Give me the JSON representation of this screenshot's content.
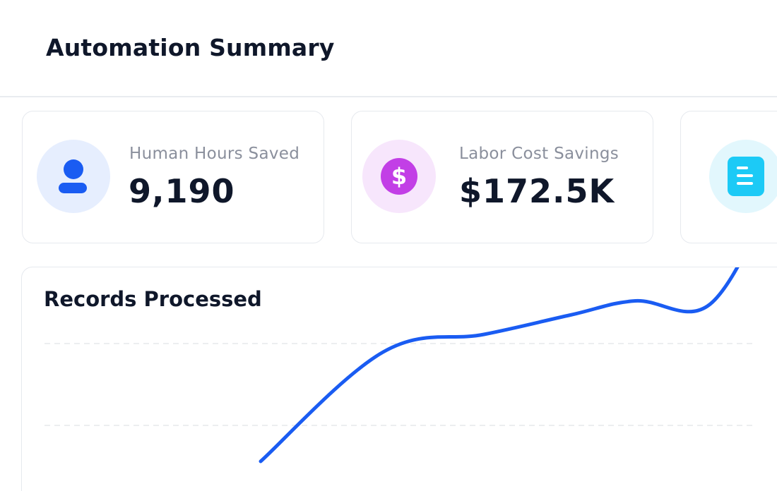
{
  "header": {
    "title": "Automation Summary"
  },
  "stats": [
    {
      "label": "Human Hours Saved",
      "value": "9,190",
      "icon": "user-icon",
      "icon_color": "#1a5cf2",
      "icon_bg": "#e6eefe"
    },
    {
      "label": "Labor Cost Savings",
      "value": "$172.5K",
      "icon": "dollar-icon",
      "icon_color": "#c23fe6",
      "icon_bg": "#f7e6fc"
    },
    {
      "label": "",
      "value": "",
      "icon": "document-icon",
      "icon_color": "#1ccaf6",
      "icon_bg": "#e2f7fd"
    }
  ],
  "chart": {
    "title": "Records Processed",
    "line_color": "#1a5cf2",
    "grid": "dashed"
  },
  "chart_data": {
    "type": "line",
    "title": "Records Processed",
    "xlabel": "",
    "ylabel": "",
    "grid": true,
    "series": [
      {
        "values": [
          {
            "x": 0.3,
            "y": 0.1
          },
          {
            "x": 0.47,
            "y": 0.72
          },
          {
            "x": 0.61,
            "y": 0.82
          },
          {
            "x": 0.73,
            "y": 0.93
          },
          {
            "x": 0.82,
            "y": 1.01
          },
          {
            "x": 0.92,
            "y": 0.98
          },
          {
            "x": 1.0,
            "y": 1.5
          }
        ]
      }
    ]
  }
}
